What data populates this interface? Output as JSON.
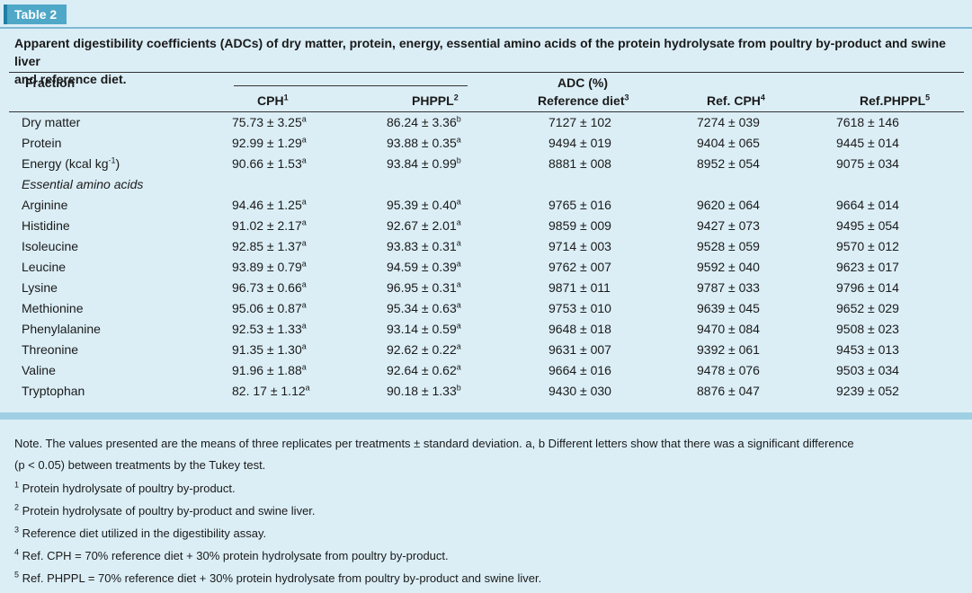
{
  "table_label": "Table 2",
  "caption": "Apparent digestibility coefficients (ADCs) of dry matter, protein, energy, essential amino acids of the protein hydrolysate from poultry by-product and swine liver and reference diet.",
  "caption_line1": "Apparent digestibility coefficients (ADCs) of dry matter, protein, energy, essential amino acids of the protein hydrolysate from poultry by-product and swine liver",
  "caption_line2": "and reference diet.",
  "header": {
    "fraction": "Fraction",
    "group": "ADC (%)",
    "cols": [
      {
        "label": "CPH",
        "sup": "1"
      },
      {
        "label": "PHPPL",
        "sup": "2"
      },
      {
        "label": "Reference diet",
        "sup": "3"
      },
      {
        "label": "Ref. CPH",
        "sup": "4"
      },
      {
        "label": "Ref.PHPPL",
        "sup": "5"
      }
    ]
  },
  "rows": [
    {
      "label": "Dry matter",
      "cph": "75.73 ± 3.25",
      "cph_sup": "a",
      "php": "86.24 ± 3.36",
      "php_sup": "b",
      "ref": "7127 ± 102",
      "rcph": "7274 ± 039",
      "rphp": "7618 ± 146"
    },
    {
      "label": "Protein",
      "cph": "92.99 ± 1.29",
      "cph_sup": "a",
      "php": "93.88 ± 0.35",
      "php_sup": "a",
      "ref": "9494 ± 019",
      "rcph": "9404 ± 065",
      "rphp": "9445 ± 014"
    },
    {
      "label": "Energy (kcal kg",
      "label_sup": "-1",
      "label_tail": ")",
      "cph": "90.66 ± 1.53",
      "cph_sup": "a",
      "php": "93.84 ± 0.99",
      "php_sup": "b",
      "ref": "8881 ± 008",
      "rcph": "8952 ± 054",
      "rphp": "9075 ± 034"
    },
    {
      "label": "Essential amino acids",
      "section": true
    },
    {
      "label": "Arginine",
      "cph": "94.46 ± 1.25",
      "cph_sup": "a",
      "php": "95.39 ± 0.40",
      "php_sup": "a",
      "ref": "9765 ± 016",
      "rcph": "9620 ± 064",
      "rphp": "9664 ± 014"
    },
    {
      "label": "Histidine",
      "cph": "91.02 ± 2.17",
      "cph_sup": "a",
      "php": "92.67 ± 2.01",
      "php_sup": "a",
      "ref": "9859 ± 009",
      "rcph": "9427 ± 073",
      "rphp": "9495 ± 054"
    },
    {
      "label": "Isoleucine",
      "cph": "92.85 ± 1.37",
      "cph_sup": "a",
      "php": "93.83 ± 0.31",
      "php_sup": "a",
      "ref": "9714 ± 003",
      "rcph": "9528 ± 059",
      "rphp": "9570 ± 012"
    },
    {
      "label": "Leucine",
      "cph": "93.89 ± 0.79",
      "cph_sup": "a",
      "php": "94.59 ± 0.39",
      "php_sup": "a",
      "ref": "9762 ± 007",
      "rcph": "9592 ± 040",
      "rphp": "9623 ± 017"
    },
    {
      "label": "Lysine",
      "cph": "96.73 ± 0.66",
      "cph_sup": "a",
      "php": "96.95 ± 0.31",
      "php_sup": "a",
      "ref": "9871 ± 011",
      "rcph": "9787 ± 033",
      "rphp": "9796 ± 014"
    },
    {
      "label": "Methionine",
      "cph": "95.06 ± 0.87",
      "cph_sup": "a",
      "php": "95.34 ± 0.63",
      "php_sup": "a",
      "ref": "9753 ± 010",
      "rcph": "9639 ± 045",
      "rphp": "9652 ± 029"
    },
    {
      "label": "Phenylalanine",
      "cph": "92.53 ± 1.33",
      "cph_sup": "a",
      "php": "93.14 ± 0.59",
      "php_sup": "a",
      "ref": "9648 ± 018",
      "rcph": "9470 ± 084",
      "rphp": "9508 ± 023"
    },
    {
      "label": "Threonine",
      "cph": "91.35 ± 1.30",
      "cph_sup": "a",
      "php": "92.62 ± 0.22",
      "php_sup": "a",
      "ref": "9631 ± 007",
      "rcph": "9392 ± 061",
      "rphp": "9453 ± 013"
    },
    {
      "label": "Valine",
      "cph": "91.96 ± 1.88",
      "cph_sup": "a",
      "php": "92.64 ± 0.62",
      "php_sup": "a",
      "ref": "9664 ± 016",
      "rcph": "9478 ± 076",
      "rphp": "9503 ± 034"
    },
    {
      "label": "Tryptophan",
      "cph": "82. 17 ± 1.12",
      "cph_sup": "a",
      "php": "90.18 ± 1.33",
      "php_sup": "b",
      "ref": "9430 ± 030",
      "rcph": "8876 ± 047",
      "rphp": "9239 ± 052"
    }
  ],
  "notes": [
    {
      "sup": "",
      "text": "Note. The values presented are the means of three replicates per treatments ± standard deviation. a, b Different letters show that there was a significant difference"
    },
    {
      "sup": "",
      "text": "(p < 0.05) between treatments by the Tukey test."
    },
    {
      "sup": "1",
      "text": " Protein hydrolysate of poultry by-product."
    },
    {
      "sup": "2",
      "text": " Protein hydrolysate of poultry by-product and swine liver."
    },
    {
      "sup": "3",
      "text": " Reference diet utilized in the digestibility assay."
    },
    {
      "sup": "4",
      "text": " Ref. CPH = 70% reference diet + 30% protein hydrolysate from poultry by-product."
    },
    {
      "sup": "5",
      "text": " Ref. PHPPL = 70% reference diet + 30% protein hydrolysate from poultry by-product and swine liver."
    }
  ],
  "colors": {
    "background": "#dbeef6",
    "tag": "#4fa8c8",
    "band": "#9fcfe2"
  }
}
